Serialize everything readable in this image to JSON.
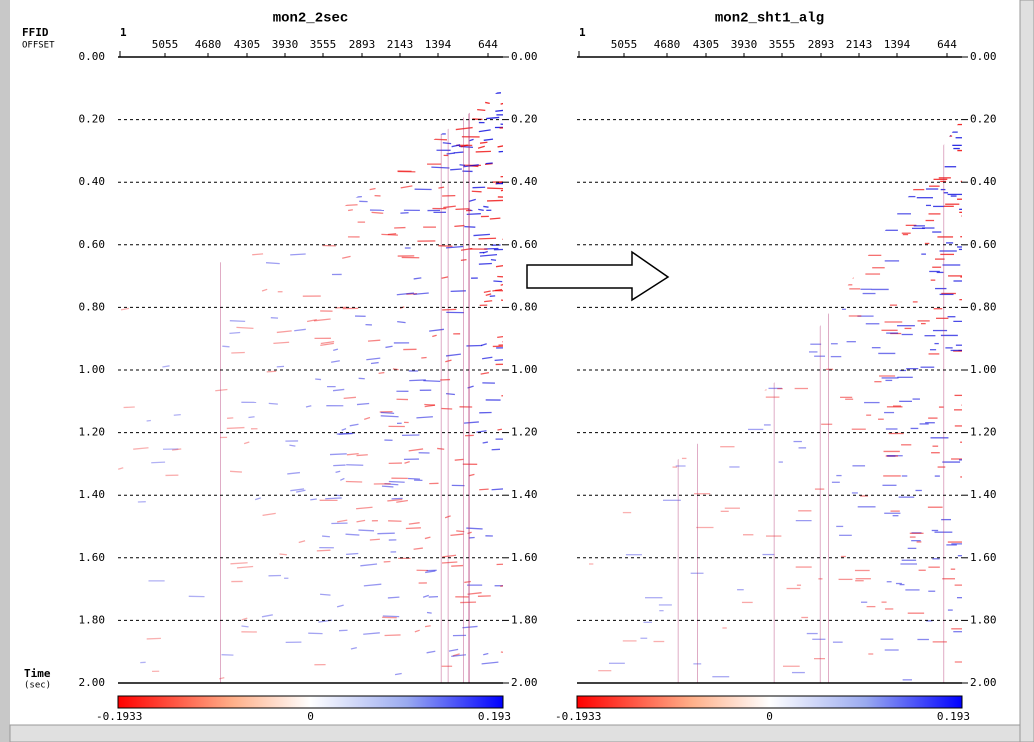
{
  "labels": {
    "ffid": "FFID",
    "offset": "OFFSET",
    "time": "Time",
    "time_unit": "(sec)"
  },
  "panels": [
    {
      "title": "mon2_2sec",
      "ffid_first": "1",
      "offsets": [
        "5055",
        "4680",
        "4305",
        "3930",
        "3555",
        "2893",
        "2143",
        "1394",
        "644"
      ],
      "time_ticks": [
        "0.00",
        "0.20",
        "0.40",
        "0.60",
        "0.80",
        "1.00",
        "1.20",
        "1.40",
        "1.60",
        "1.80",
        "2.00"
      ],
      "colorbar": {
        "min": "-0.1933",
        "mid": "0",
        "max": "0.193"
      }
    },
    {
      "title": "mon2_sht1_alg",
      "ffid_first": "1",
      "offsets": [
        "5055",
        "4680",
        "4305",
        "3930",
        "3555",
        "2893",
        "2143",
        "1394",
        "644"
      ],
      "time_ticks": [
        "0.00",
        "0.20",
        "0.40",
        "0.60",
        "0.80",
        "1.00",
        "1.20",
        "1.40",
        "1.60",
        "1.80",
        "2.00"
      ],
      "colorbar": {
        "min": "-0.1933",
        "mid": "0",
        "max": "0.193"
      }
    }
  ]
}
